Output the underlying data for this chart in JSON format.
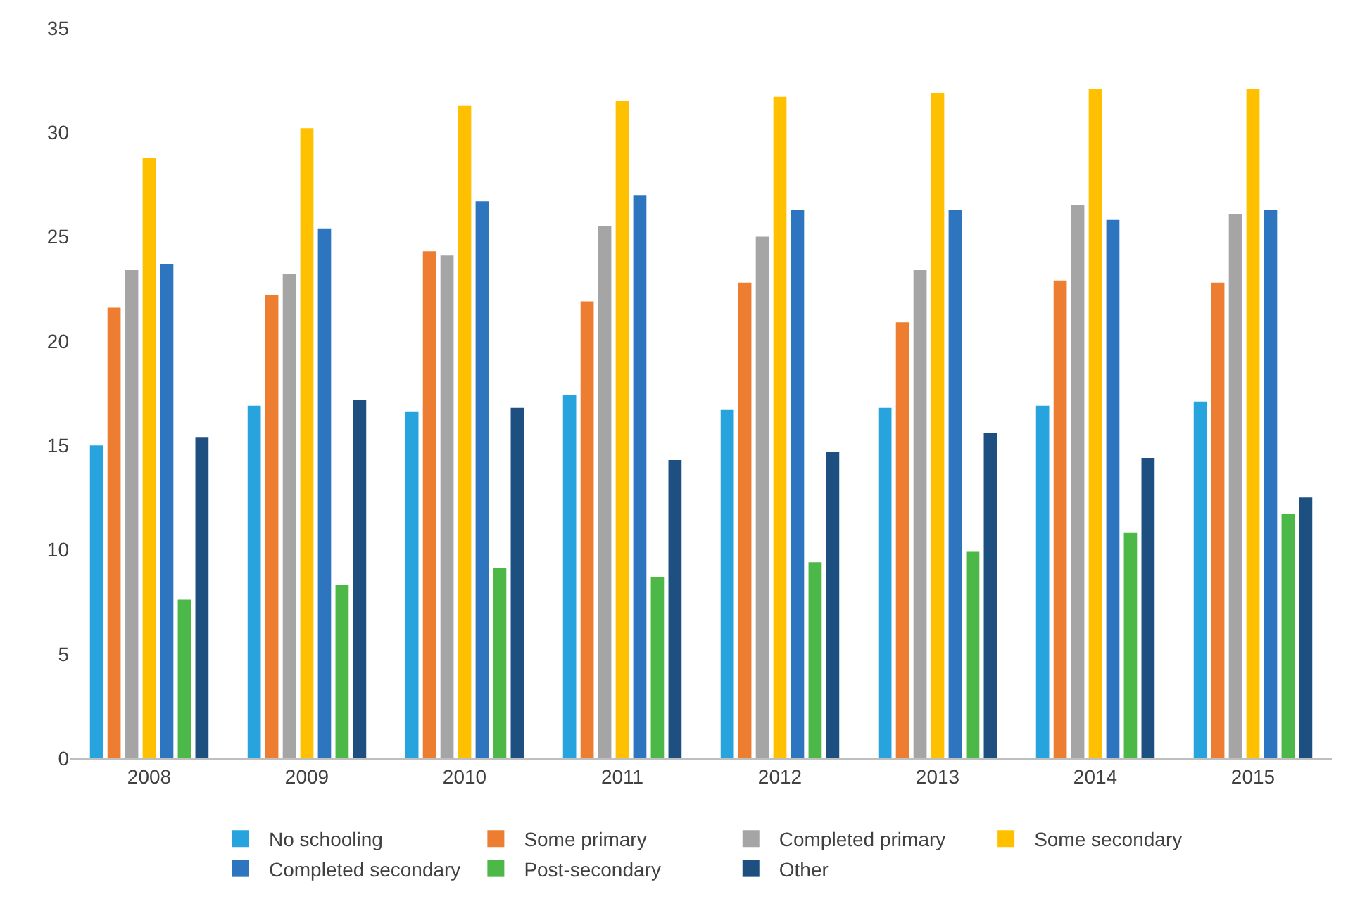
{
  "chart_data": {
    "type": "bar",
    "categories": [
      "2008",
      "2009",
      "2010",
      "2011",
      "2012",
      "2013",
      "2014",
      "2015"
    ],
    "series": [
      {
        "name": "No schooling",
        "color": "#27a4dd",
        "values": [
          15.0,
          16.9,
          16.6,
          17.4,
          16.7,
          16.8,
          16.9,
          17.1
        ]
      },
      {
        "name": "Some primary",
        "color": "#ed7d31",
        "values": [
          21.6,
          22.2,
          24.3,
          21.9,
          22.8,
          20.9,
          22.9,
          22.8
        ]
      },
      {
        "name": "Completed primary",
        "color": "#a5a5a5",
        "values": [
          23.4,
          23.2,
          24.1,
          25.5,
          25.0,
          23.4,
          26.5,
          26.1
        ]
      },
      {
        "name": "Some secondary",
        "color": "#ffc000",
        "values": [
          28.8,
          30.2,
          31.3,
          31.5,
          31.7,
          31.9,
          32.1,
          32.1
        ]
      },
      {
        "name": "Completed secondary",
        "color": "#2e75c0",
        "values": [
          23.7,
          25.4,
          26.7,
          27.0,
          26.3,
          26.3,
          25.8,
          26.3
        ]
      },
      {
        "name": "Post-secondary",
        "color": "#4cb848",
        "values": [
          7.6,
          8.3,
          9.1,
          8.7,
          9.4,
          9.9,
          10.8,
          11.7
        ]
      },
      {
        "name": "Other",
        "color": "#1d4f80",
        "values": [
          15.4,
          17.2,
          16.8,
          14.3,
          14.7,
          15.6,
          14.4,
          12.5
        ]
      }
    ],
    "ylim": [
      0,
      35
    ],
    "yticks": [
      0,
      5,
      10,
      15,
      20,
      25,
      30,
      35
    ],
    "legend": "bottom"
  }
}
